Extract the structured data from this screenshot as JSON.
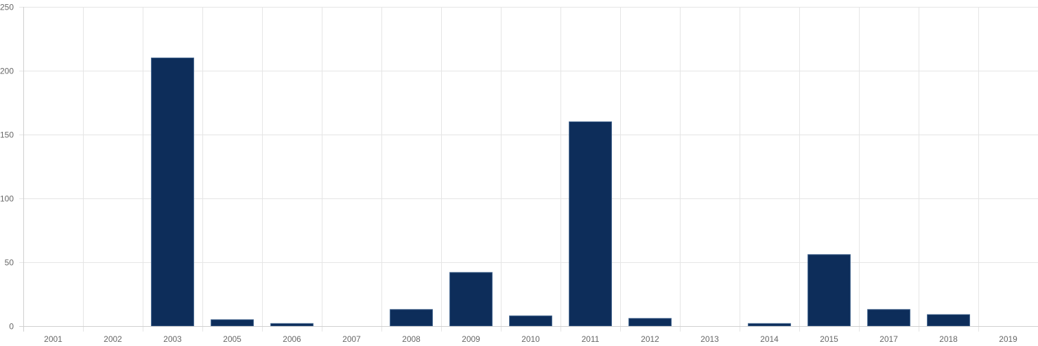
{
  "chart_data": {
    "type": "bar",
    "title": "",
    "xlabel": "",
    "ylabel": "",
    "categories": [
      "2001",
      "2002",
      "2003",
      "2005",
      "2006",
      "2007",
      "2008",
      "2009",
      "2010",
      "2011",
      "2012",
      "2013",
      "2014",
      "2015",
      "2017",
      "2018",
      "2019"
    ],
    "values": [
      0,
      0,
      210,
      5,
      2,
      0,
      13,
      42,
      8,
      160,
      6,
      0,
      2,
      56,
      13,
      9,
      0
    ],
    "ylim": [
      0,
      250
    ],
    "yticks": [
      0,
      50,
      100,
      150,
      200,
      250
    ],
    "grid": true,
    "legend": "none",
    "colors": {
      "bar_fill": "#0d2d5a",
      "bar_stroke": "#3c5f8a",
      "grid": "#e5e5e5",
      "axis": "#cfcfcf",
      "tick_text": "#666666"
    }
  }
}
